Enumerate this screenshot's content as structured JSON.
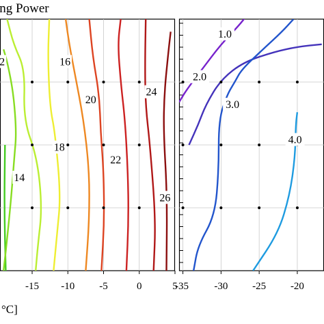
{
  "chart_data": [
    {
      "type": "contour",
      "title": "ing Power",
      "xlabel": "°C]",
      "x_ticks": [
        "-15",
        "-10",
        "-5",
        "0",
        "5"
      ],
      "xlim": [
        -19.5,
        5
      ],
      "y_levels": 3,
      "grid": true,
      "contours": [
        {
          "level": "",
          "color": "#44cc22",
          "points": [
            [
              -18.7,
              0
            ],
            [
              -18.9,
              0.25
            ],
            [
              -18.8,
              0.5
            ]
          ]
        },
        {
          "level": "2",
          "color": "#88dd22",
          "points": [
            [
              -19.0,
              0.0
            ],
            [
              -18.6,
              0.1
            ],
            [
              -17.9,
              0.3
            ],
            [
              -17.5,
              0.45
            ],
            [
              -17.2,
              0.55
            ],
            [
              -17.6,
              0.7
            ],
            [
              -18.4,
              0.82
            ],
            [
              -19.0,
              0.88
            ]
          ]
        },
        {
          "level": "14",
          "color": "#bbee33",
          "points": [
            [
              -14.5,
              0.0
            ],
            [
              -14.2,
              0.1
            ],
            [
              -13.6,
              0.25
            ],
            [
              -14.3,
              0.45
            ],
            [
              -16.2,
              0.6
            ],
            [
              -16.0,
              0.8
            ],
            [
              -17.6,
              0.9
            ],
            [
              -18.5,
              1.0
            ]
          ]
        },
        {
          "level": "16",
          "color": "#eeee33",
          "points": [
            [
              -12.0,
              0.0
            ],
            [
              -11.5,
              0.15
            ],
            [
              -11.0,
              0.3
            ],
            [
              -11.8,
              0.55
            ],
            [
              -12.5,
              0.65
            ],
            [
              -12.8,
              0.85
            ],
            [
              -12.6,
              1.0
            ]
          ]
        },
        {
          "level": "18",
          "color": "#ee8822",
          "points": [
            [
              -7.5,
              0.0
            ],
            [
              -7.0,
              0.2
            ],
            [
              -7.0,
              0.4
            ],
            [
              -7.8,
              0.6
            ],
            [
              -9.0,
              0.78
            ],
            [
              -9.8,
              0.9
            ],
            [
              -10.3,
              1.0
            ]
          ]
        },
        {
          "level": "20",
          "color": "#dd4422",
          "points": [
            [
              -5.3,
              0.0
            ],
            [
              -4.9,
              0.2
            ],
            [
              -5.0,
              0.4
            ],
            [
              -5.4,
              0.55
            ],
            [
              -5.6,
              0.7
            ],
            [
              -6.5,
              0.85
            ],
            [
              -7.0,
              1.0
            ]
          ]
        },
        {
          "level": "22",
          "color": "#cc2222",
          "points": [
            [
              -1.8,
              0.0
            ],
            [
              -1.5,
              0.2
            ],
            [
              -1.6,
              0.4
            ],
            [
              -2.0,
              0.6
            ],
            [
              -2.6,
              0.75
            ],
            [
              -3.0,
              0.9
            ],
            [
              -2.6,
              1.0
            ]
          ]
        },
        {
          "level": "24",
          "color": "#b01818",
          "points": [
            [
              2.0,
              0.0
            ],
            [
              2.3,
              0.2
            ],
            [
              1.5,
              0.5
            ],
            [
              0.9,
              0.65
            ],
            [
              0.8,
              0.8
            ],
            [
              0.9,
              1.0
            ]
          ]
        },
        {
          "level": "26",
          "color": "#8b0f0f",
          "points": [
            [
              3.8,
              0.0
            ],
            [
              3.9,
              0.3
            ],
            [
              3.4,
              0.55
            ],
            [
              3.5,
              0.7
            ],
            [
              4.0,
              0.85
            ],
            [
              4.4,
              0.95
            ]
          ]
        }
      ],
      "labels": [
        {
          "text": "2",
          "x": -19.2,
          "y": 0.83
        },
        {
          "text": "14",
          "x": -16.8,
          "y": 0.37
        },
        {
          "text": "16",
          "x": -10.4,
          "y": 0.83
        },
        {
          "text": "18",
          "x": -11.2,
          "y": 0.49
        },
        {
          "text": "20",
          "x": -6.8,
          "y": 0.68
        },
        {
          "text": "22",
          "x": -3.3,
          "y": 0.44
        },
        {
          "text": "24",
          "x": 1.7,
          "y": 0.71
        },
        {
          "text": "26",
          "x": 3.6,
          "y": 0.29
        }
      ]
    },
    {
      "type": "contour",
      "x_ticks": [
        "-35",
        "-30",
        "-25",
        "-20"
      ],
      "xlim": [
        -35.5,
        -16.5
      ],
      "y_levels": 3,
      "grid": true,
      "contours": [
        {
          "level": "1.0",
          "color": "#7722cc",
          "points": [
            [
              -35.5,
              0.67
            ],
            [
              -34.5,
              0.72
            ],
            [
              -32.5,
              0.8
            ],
            [
              -30.0,
              0.9
            ],
            [
              -27.5,
              0.98
            ],
            [
              -26.5,
              1.02
            ]
          ]
        },
        {
          "level": "2.0",
          "color": "#4433bb",
          "points": [
            [
              -34.2,
              0.5
            ],
            [
              -33.0,
              0.58
            ],
            [
              -32.0,
              0.66
            ],
            [
              -30.0,
              0.76
            ],
            [
              -27.0,
              0.83
            ],
            [
              -23.0,
              0.87
            ],
            [
              -20.0,
              0.89
            ],
            [
              -16.8,
              0.9
            ]
          ]
        },
        {
          "level": "3.0",
          "color": "#2255cc",
          "points": [
            [
              -33.6,
              0.0
            ],
            [
              -33.0,
              0.1
            ],
            [
              -30.8,
              0.22
            ],
            [
              -30.3,
              0.4
            ],
            [
              -30.3,
              0.6
            ],
            [
              -29.2,
              0.7
            ],
            [
              -28.2,
              0.75
            ],
            [
              -27.3,
              0.8
            ],
            [
              -24.5,
              0.88
            ],
            [
              -22.0,
              0.95
            ],
            [
              -20.5,
              1.0
            ]
          ]
        },
        {
          "level": "4.0",
          "color": "#1e9be0",
          "points": [
            [
              -25.8,
              0.0
            ],
            [
              -22.5,
              0.15
            ],
            [
              -21.0,
              0.3
            ],
            [
              -20.3,
              0.45
            ],
            [
              -20.2,
              0.58
            ],
            [
              -20.0,
              0.63
            ]
          ]
        }
      ],
      "labels": [
        {
          "text": "1.0",
          "x": -29.5,
          "y": 0.94
        },
        {
          "text": "2.0",
          "x": -32.8,
          "y": 0.77
        },
        {
          "text": "3.0",
          "x": -28.5,
          "y": 0.66
        },
        {
          "text": "4.0",
          "x": -20.3,
          "y": 0.52
        }
      ]
    }
  ]
}
